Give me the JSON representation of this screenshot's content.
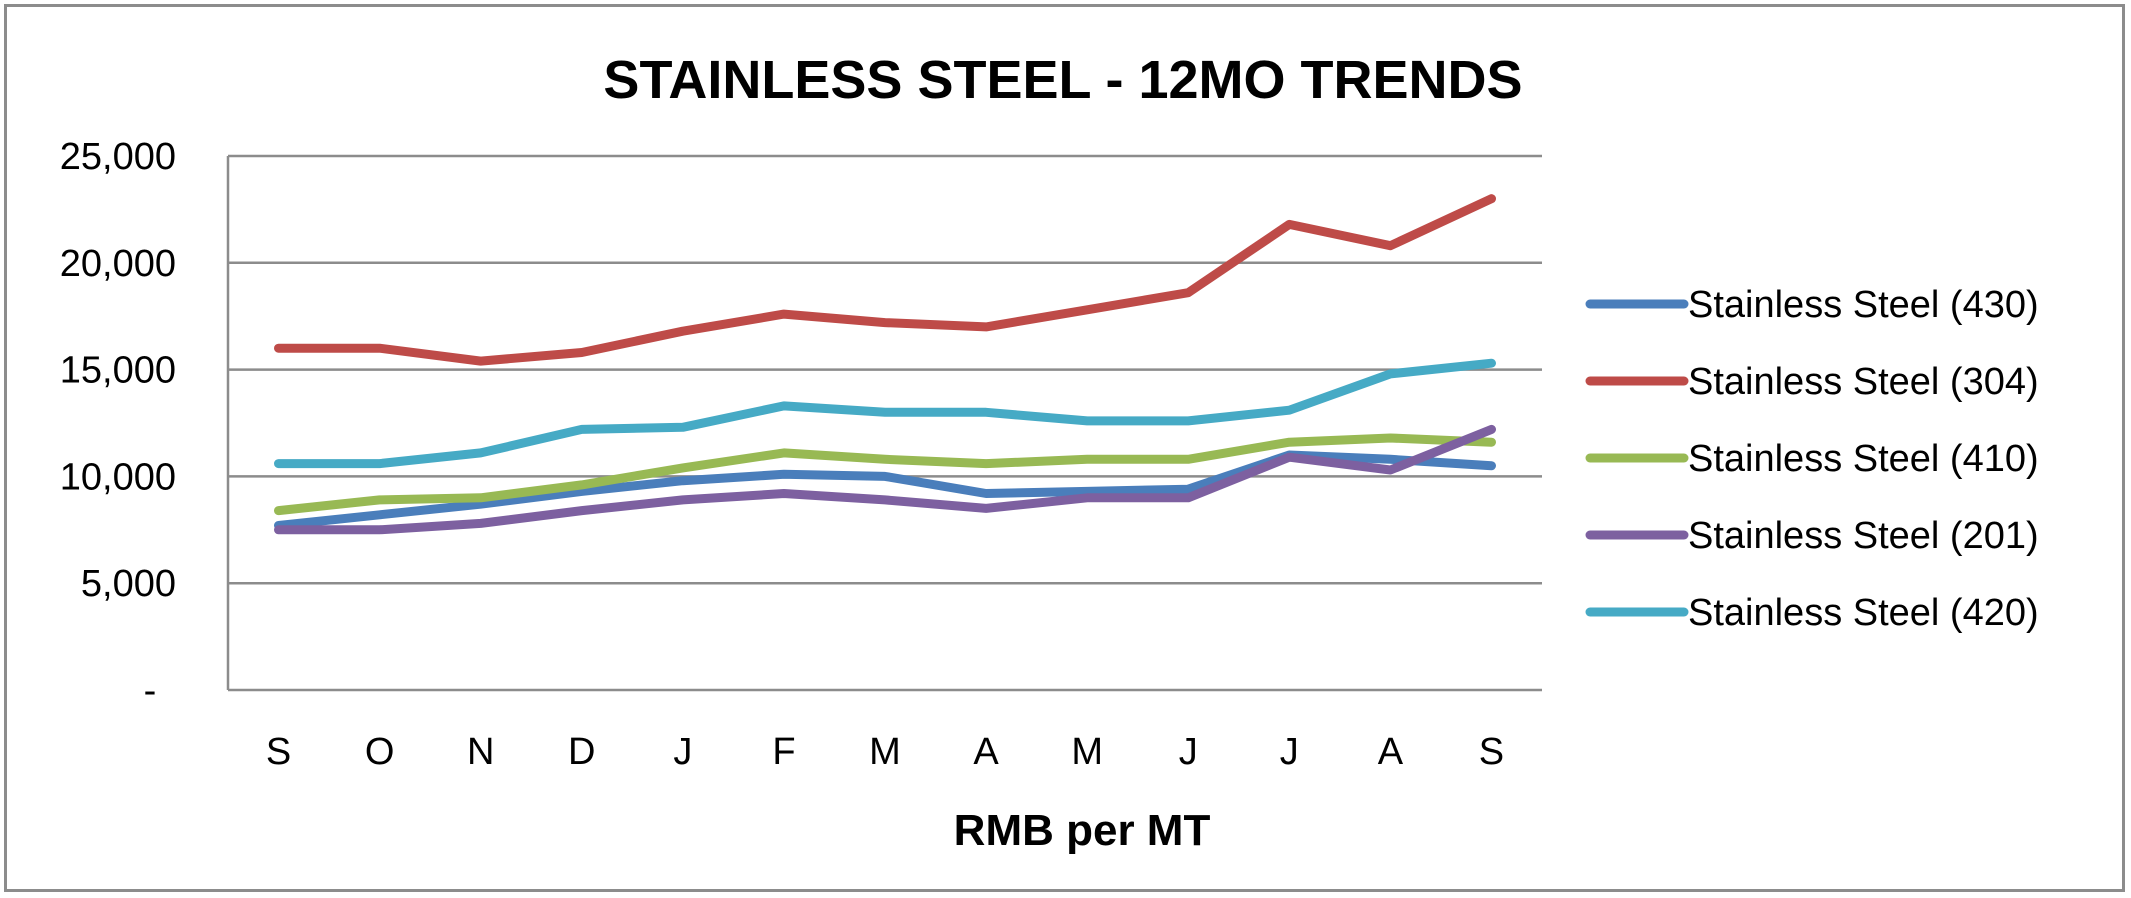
{
  "chart_data": {
    "type": "line",
    "title": "STAINLESS STEEL - 12MO TRENDS",
    "xlabel": "RMB per MT",
    "ylabel": "",
    "categories": [
      "S",
      "O",
      "N",
      "D",
      "J",
      "F",
      "M",
      "A",
      "M",
      "J",
      "J",
      "A",
      "S"
    ],
    "ylim": [
      0,
      25000
    ],
    "yticks": [
      0,
      5000,
      10000,
      15000,
      20000,
      25000
    ],
    "ytick_labels": [
      "-",
      "5,000",
      "10,000",
      "15,000",
      "20,000",
      "25,000"
    ],
    "grid": true,
    "legend_position": "right",
    "series": [
      {
        "name": "Stainless Steel (430)",
        "color": "#4a7ebb",
        "values": [
          7700,
          8200,
          8700,
          9300,
          9800,
          10100,
          10000,
          9200,
          9300,
          9400,
          11000,
          10800,
          10500
        ]
      },
      {
        "name": "Stainless Steel (304)",
        "color": "#be4b48",
        "values": [
          16000,
          16000,
          15400,
          15800,
          16800,
          17600,
          17200,
          17000,
          17800,
          18600,
          21800,
          20800,
          23000
        ]
      },
      {
        "name": "Stainless Steel (410)",
        "color": "#98b954",
        "values": [
          8400,
          8900,
          9000,
          9600,
          10400,
          11100,
          10800,
          10600,
          10800,
          10800,
          11600,
          11800,
          11600
        ]
      },
      {
        "name": "Stainless Steel (201)",
        "color": "#7d60a0",
        "values": [
          7500,
          7500,
          7800,
          8400,
          8900,
          9200,
          8900,
          8500,
          9000,
          9000,
          10900,
          10300,
          12200
        ]
      },
      {
        "name": "Stainless Steel (420)",
        "color": "#46aac5",
        "values": [
          10600,
          10600,
          11100,
          12200,
          12300,
          13300,
          13000,
          13000,
          12600,
          12600,
          13100,
          14800,
          15300
        ]
      }
    ]
  }
}
